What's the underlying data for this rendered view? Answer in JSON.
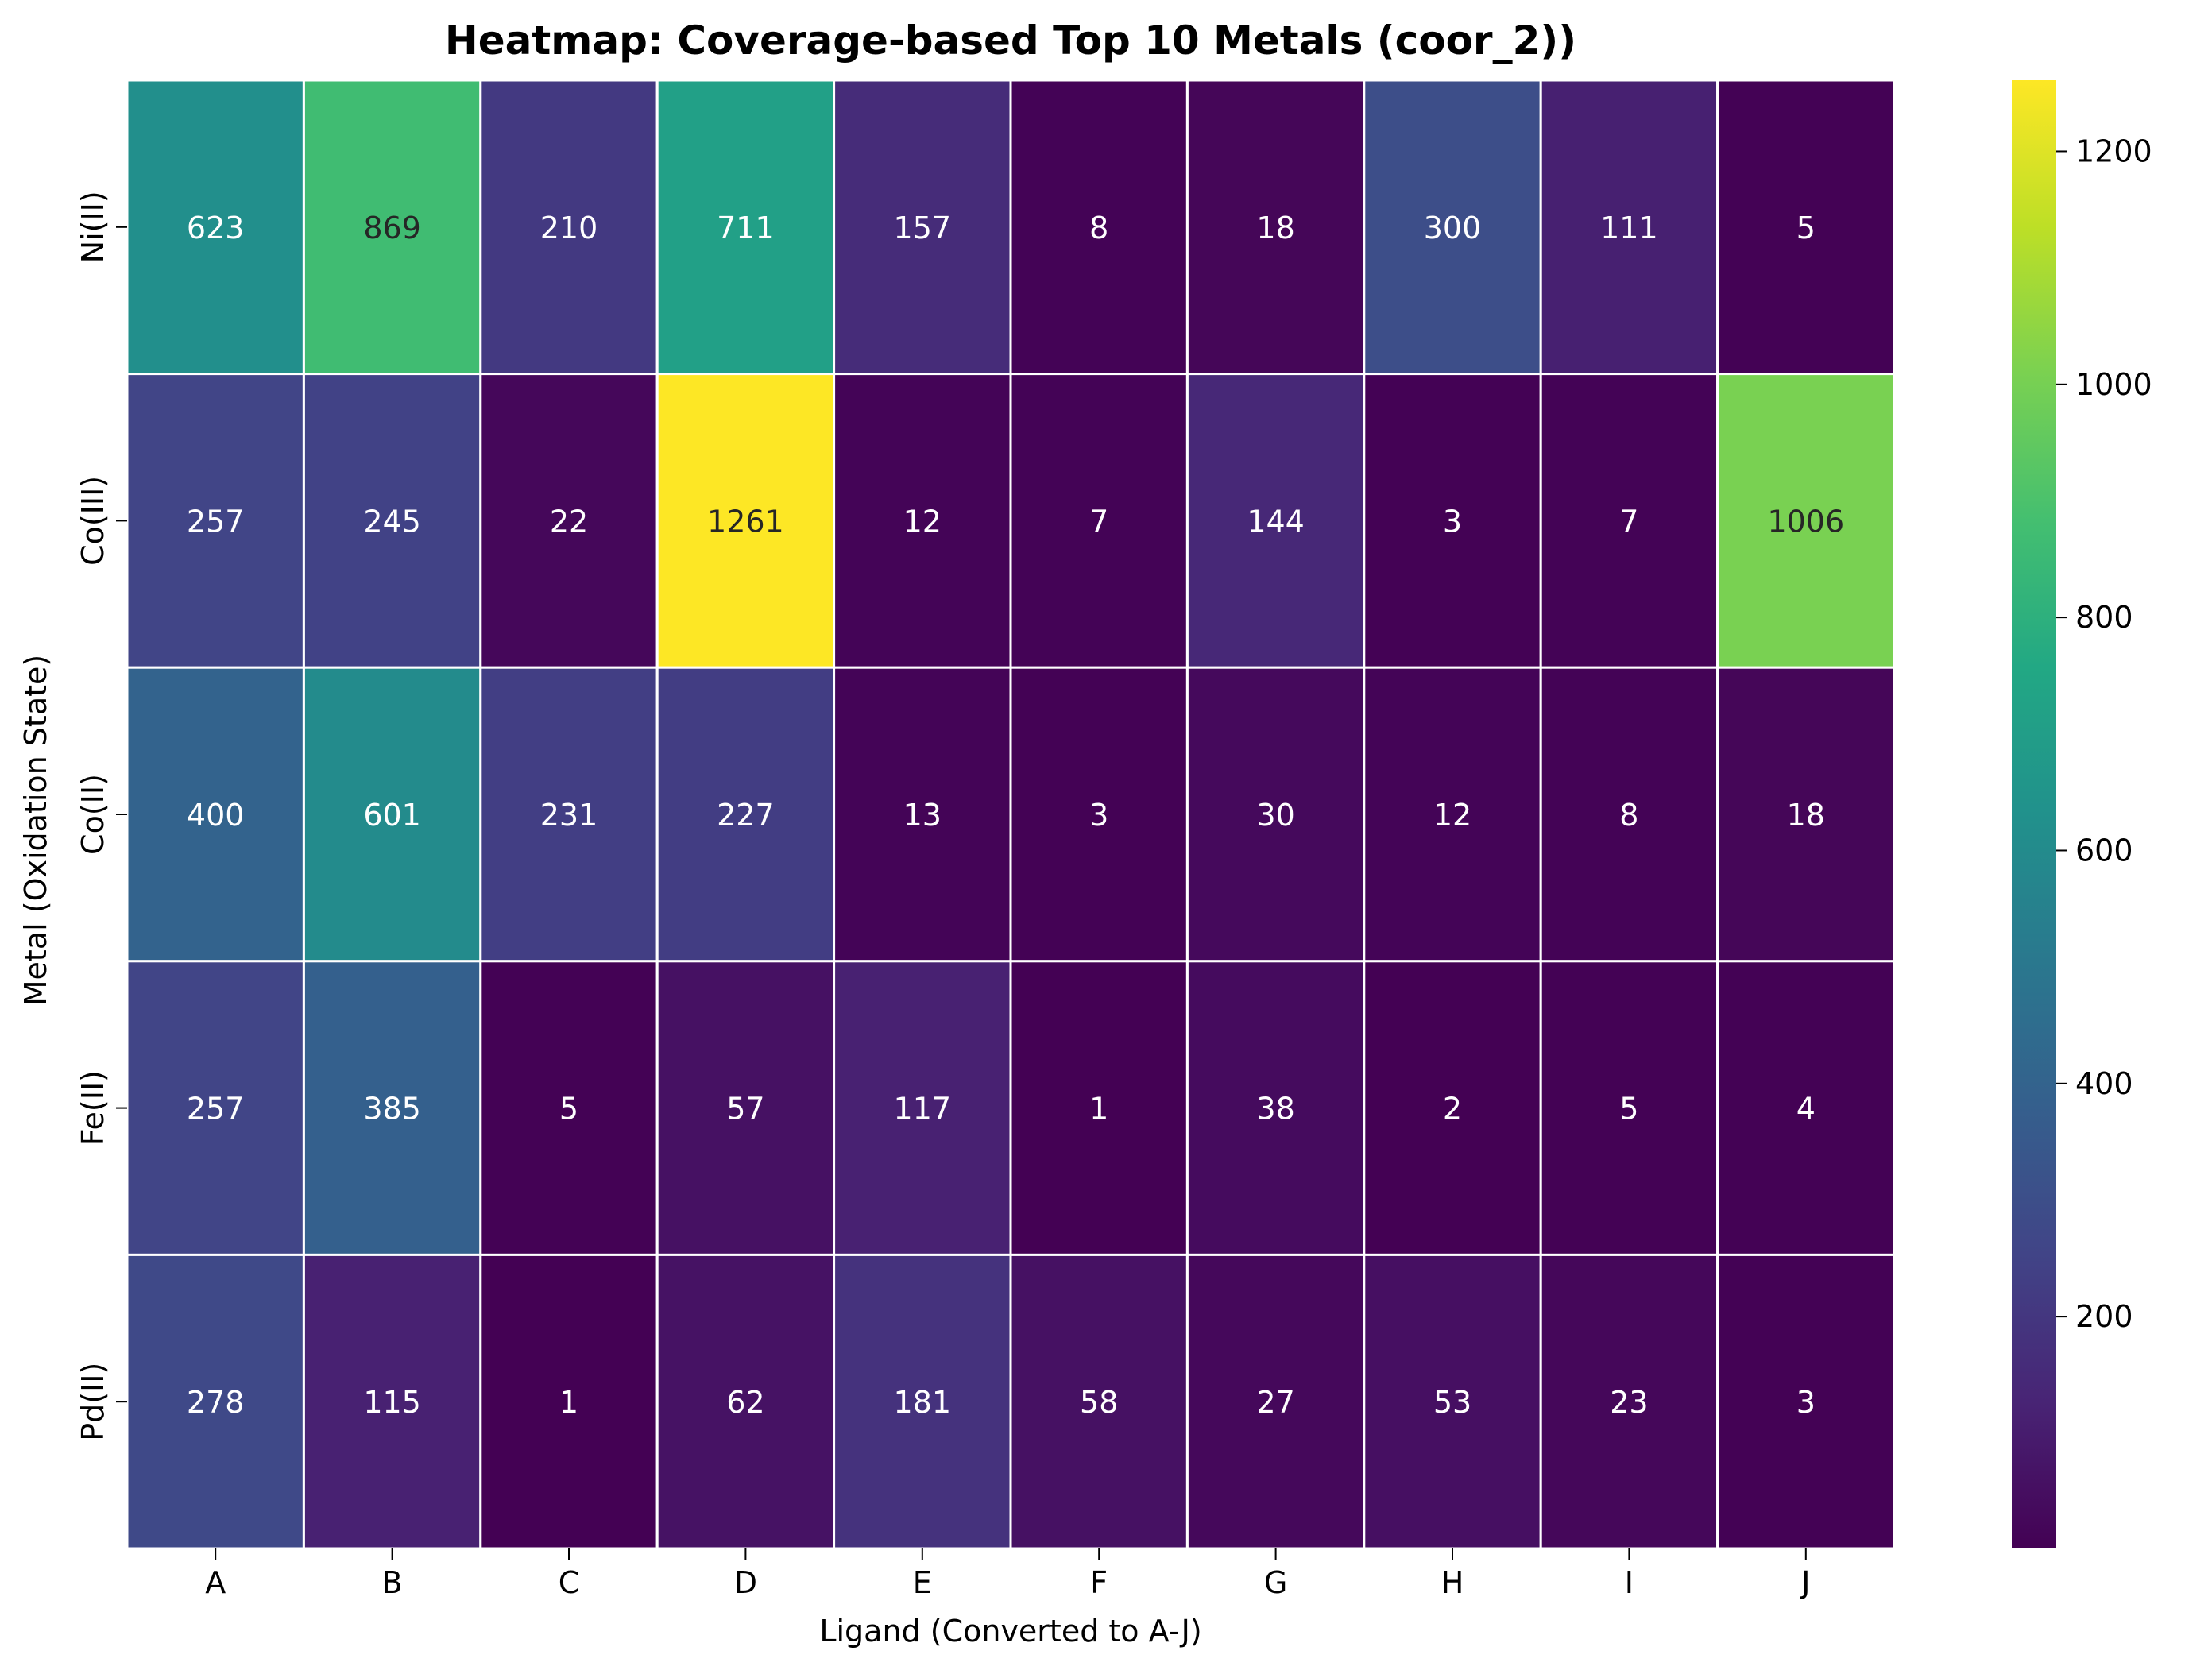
{
  "chart_data": {
    "type": "heatmap",
    "title": "Heatmap: Coverage-based Top 10 Metals (coor_2))",
    "xlabel": "Ligand (Converted to A-J)",
    "ylabel": "Metal (Oxidation State)",
    "x_categories": [
      "A",
      "B",
      "C",
      "D",
      "E",
      "F",
      "G",
      "H",
      "I",
      "J"
    ],
    "y_categories": [
      "Ni(II)",
      "Co(III)",
      "Co(II)",
      "Fe(II)",
      "Pd(II)"
    ],
    "values": [
      [
        623,
        869,
        210,
        711,
        157,
        8,
        18,
        300,
        111,
        5
      ],
      [
        257,
        245,
        22,
        1261,
        12,
        7,
        144,
        3,
        7,
        1006
      ],
      [
        400,
        601,
        231,
        227,
        13,
        3,
        30,
        12,
        8,
        18
      ],
      [
        257,
        385,
        5,
        57,
        117,
        1,
        38,
        2,
        5,
        4
      ],
      [
        278,
        115,
        1,
        62,
        181,
        58,
        27,
        53,
        23,
        3
      ]
    ],
    "colormap": "viridis",
    "colorbar": {
      "vmin": 1,
      "vmax": 1261,
      "ticks": [
        200,
        400,
        600,
        800,
        1000,
        1200
      ]
    },
    "annotations": "cell values shown in each cell",
    "text_colors": {
      "light": "#ffffff",
      "dark": "#262626"
    },
    "cell_border_color": "#ffffff"
  }
}
